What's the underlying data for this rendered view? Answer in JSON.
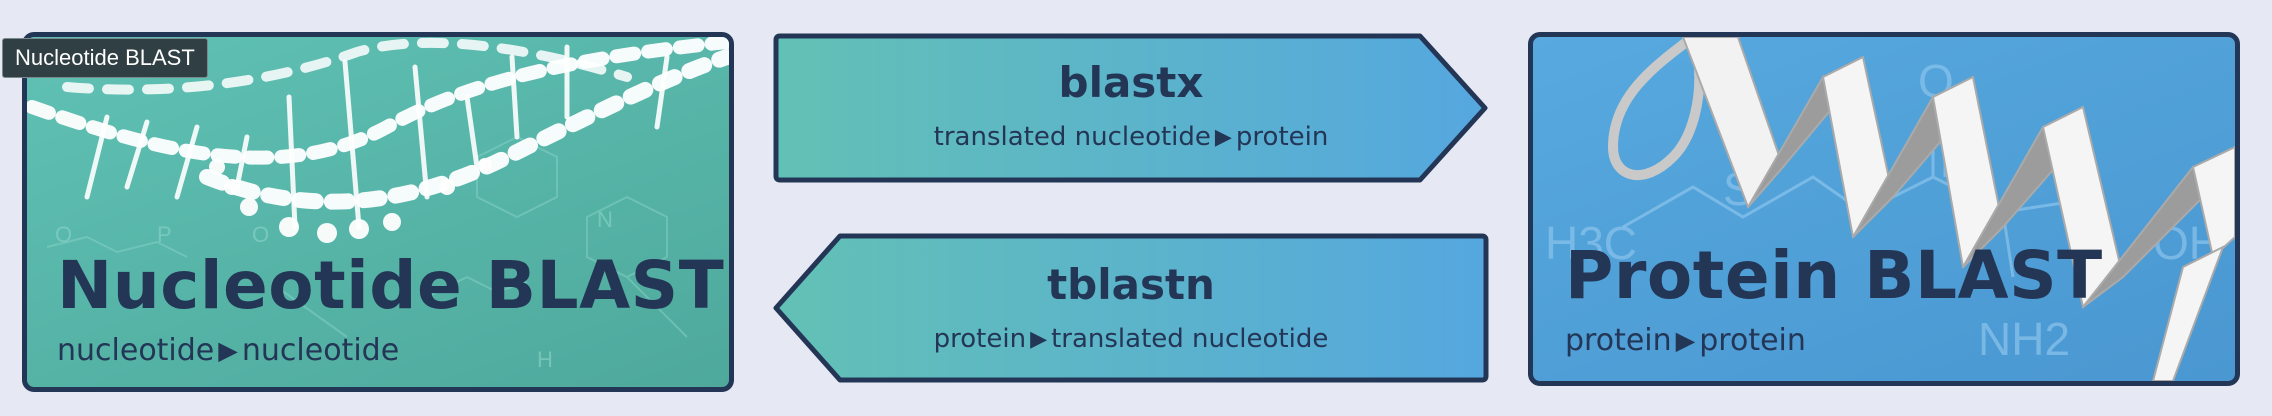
{
  "tooltip": {
    "text": "Nucleotide BLAST"
  },
  "nucleotide_card": {
    "title": "Nucleotide BLAST",
    "sub_from": "nucleotide",
    "sub_to": "nucleotide"
  },
  "blastx": {
    "title": "blastx",
    "sub_from": "translated nucleotide",
    "sub_to": "protein"
  },
  "tblastn": {
    "title": "tblastn",
    "sub_from": "protein",
    "sub_to": "translated nucleotide"
  },
  "protein_card": {
    "title": "Protein BLAST",
    "sub_from": "protein",
    "sub_to": "protein",
    "watermark_h3c": "H3C",
    "watermark_s": "S",
    "watermark_nh2": "NH2",
    "watermark_oh": "OH",
    "watermark_o": "O"
  },
  "nucleotide_watermark": {
    "o_left": "O",
    "p": "P",
    "o_right": "O",
    "n": "N",
    "h": "H"
  },
  "arrow_glyph": "▶",
  "colors": {
    "dark_navy": "#243656",
    "teal": "#5fc1b4",
    "blue": "#57a9df",
    "page_bg": "#e6e9f3"
  }
}
